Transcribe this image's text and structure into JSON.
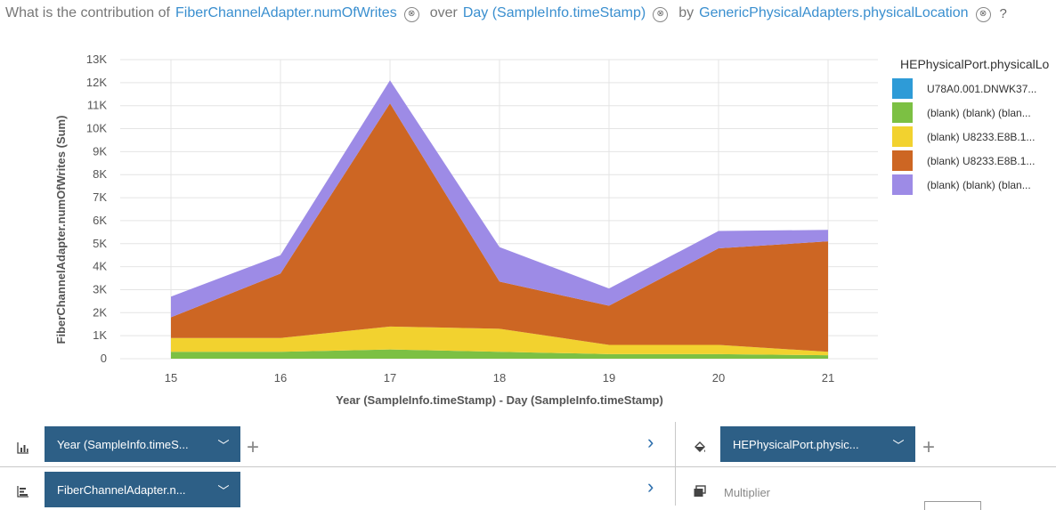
{
  "question": {
    "prefix": "What is the contribution of",
    "measure": "FiberChannelAdapter.numOfWrites",
    "over_word": "over",
    "over_term": "Day (SampleInfo.timeStamp)",
    "by_word": "by",
    "by_term": "GenericPhysicalAdapters.physicalLocation",
    "clear_icon": "⊗",
    "help": "?"
  },
  "chart_data": {
    "type": "area",
    "stacked": true,
    "categories": [
      "15",
      "16",
      "17",
      "18",
      "19",
      "20",
      "21"
    ],
    "series": [
      {
        "name": "U78A0.001.DNWK37...",
        "color": "#2e9bd7",
        "values": [
          0,
          0,
          0,
          0,
          0,
          0,
          0
        ]
      },
      {
        "name": "(blank) (blank) (blan...",
        "color": "#7cc043",
        "values": [
          300,
          300,
          400,
          300,
          200,
          200,
          150
        ]
      },
      {
        "name": "(blank) U8233.E8B.1...",
        "color": "#f2d22f",
        "values": [
          600,
          600,
          1000,
          1000,
          400,
          400,
          150
        ]
      },
      {
        "name": "(blank) U8233.E8B.1...",
        "color": "#cd6623",
        "values": [
          900,
          2800,
          9700,
          2050,
          1700,
          4200,
          4800
        ]
      },
      {
        "name": "(blank) (blank) (blan...",
        "color": "#9d8be6",
        "values": [
          900,
          800,
          1000,
          1500,
          750,
          750,
          500
        ]
      }
    ],
    "xlabel": "Year (SampleInfo.timeStamp) - Day (SampleInfo.timeStamp)",
    "ylabel": "FiberChannelAdapter.numOfWrites (Sum)",
    "yticks": [
      "0",
      "1K",
      "2K",
      "3K",
      "4K",
      "5K",
      "6K",
      "7K",
      "8K",
      "9K",
      "10K",
      "11K",
      "12K",
      "13K"
    ],
    "ylim": [
      0,
      13000
    ],
    "grid": true,
    "legend_position": "right",
    "legend_title": "HEPhysicalPort.physicalLo"
  },
  "bottom": {
    "x_slot_label": "Year (SampleInfo.timeS...",
    "y_slot_label": "FiberChannelAdapter.n...",
    "color_slot_label": "HEPhysicalPort.physic...",
    "multiplier_label": "Multiplier",
    "plus": "+",
    "arrow": "›",
    "chevron": "﹀"
  }
}
